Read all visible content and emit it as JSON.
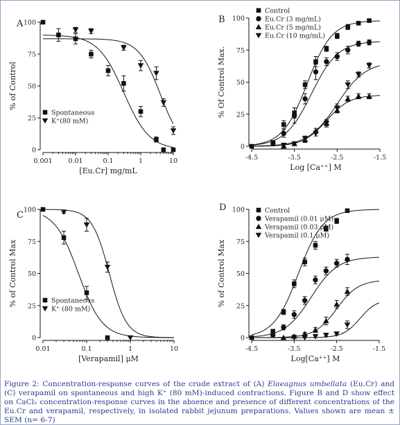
{
  "chart_data": [
    {
      "panel": "A",
      "type": "scatter",
      "xscale": "log",
      "xlim": [
        0.001,
        10
      ],
      "ylim": [
        0,
        100
      ],
      "xticks": [
        "0.001",
        "0.01",
        "0.1",
        "1",
        "10"
      ],
      "yticks": [
        "0",
        "25",
        "50",
        "75",
        "100"
      ],
      "xlabel": "[Eu.Cr] mg/mL",
      "ylabel": "% of Control",
      "legend_position": "lower-left",
      "series": [
        {
          "name": "Spontaneous",
          "marker": "square",
          "x": [
            0.001,
            0.003,
            0.01,
            0.03,
            0.1,
            0.3,
            1,
            3,
            5,
            10
          ],
          "y": [
            100,
            90,
            87,
            75,
            62,
            52,
            30,
            8,
            0,
            0
          ],
          "err": [
            0,
            5,
            4,
            3,
            4,
            6,
            4,
            2,
            0,
            0
          ],
          "curve": {
            "top": 90,
            "bottom": 0,
            "ec50": 0.3,
            "hill": 1.1
          }
        },
        {
          "name": "K⁺(80 mM)",
          "marker": "triangle-down",
          "x": [
            0.01,
            0.03,
            0.3,
            1,
            3,
            5,
            10
          ],
          "y": [
            94,
            93,
            80,
            66,
            60,
            37,
            15
          ],
          "err": [
            2,
            2,
            2,
            4,
            5,
            3,
            3
          ],
          "curve": {
            "top": 87,
            "bottom": 0,
            "ec50": 4,
            "hill": 1.3
          }
        }
      ]
    },
    {
      "panel": "B",
      "type": "scatter",
      "xlim": [
        -4.5,
        -1.5
      ],
      "ylim": [
        0,
        100
      ],
      "xticks": [
        "-4.5",
        "-3.5",
        "-2.5",
        "-1.5"
      ],
      "yticks": [
        "0",
        "25",
        "50",
        "75",
        "100"
      ],
      "xlabel": "Log [Ca⁺⁺] M",
      "ylabel": "% Of Control Max.",
      "legend_position": "top-left",
      "series": [
        {
          "name": "Control",
          "marker": "square",
          "x": [
            -4.5,
            -4,
            -3.75,
            -3.5,
            -3.25,
            -3,
            -2.75,
            -2.5,
            -2.25,
            -2,
            -1.75
          ],
          "y": [
            0,
            3,
            17,
            26,
            48,
            66,
            76,
            86,
            93,
            96,
            98
          ],
          "err": [
            0,
            1,
            3,
            4,
            3,
            4,
            2,
            2,
            2,
            1,
            1
          ],
          "curve": {
            "top": 98,
            "bottom": 0,
            "ec50": -3.2,
            "hill": 1.5
          }
        },
        {
          "name": "Eu.Cr (3 mg/mL)",
          "marker": "circle",
          "x": [
            -4,
            -3.75,
            -3.5,
            -3.25,
            -3,
            -2.75,
            -2.5,
            -2.25,
            -2,
            -1.75
          ],
          "y": [
            2,
            10,
            24,
            37,
            58,
            66,
            70,
            75,
            80,
            81
          ],
          "err": [
            1,
            3,
            6,
            4,
            6,
            3,
            3,
            3,
            2,
            2
          ],
          "curve": {
            "top": 82,
            "bottom": 0,
            "ec50": -3.1,
            "hill": 1.4
          }
        },
        {
          "name": "Eu.Cr (5 mg/mL)",
          "marker": "triangle-up",
          "x": [
            -3.75,
            -3.5,
            -3.25,
            -3,
            -2.75,
            -2.5,
            -2.25,
            -2,
            -1.75
          ],
          "y": [
            0,
            2,
            5,
            12,
            18,
            28,
            37,
            39,
            39
          ],
          "err": [
            0,
            1,
            2,
            2,
            2,
            2,
            2,
            2,
            2
          ],
          "curve": {
            "top": 40,
            "bottom": 0,
            "ec50": -2.75,
            "hill": 1.6
          }
        },
        {
          "name": "Eu.Cr (10 mg/mL)",
          "marker": "triangle-down",
          "x": [
            -3.75,
            -3.5,
            -3.25,
            -3,
            -2.75,
            -2.5,
            -2.25,
            -2,
            -1.75
          ],
          "y": [
            1,
            2,
            6,
            10,
            18,
            30,
            48,
            56,
            63
          ],
          "err": [
            1,
            1,
            2,
            2,
            3,
            3,
            3,
            2,
            2
          ],
          "curve": {
            "top": 66,
            "bottom": 0,
            "ec50": -2.5,
            "hill": 1.3
          }
        }
      ]
    },
    {
      "panel": "C",
      "type": "scatter",
      "xscale": "log",
      "xlim": [
        0.01,
        10
      ],
      "ylim": [
        0,
        100
      ],
      "xticks": [
        "0.01",
        "0.1",
        "1",
        "10"
      ],
      "yticks": [
        "0",
        "25",
        "50",
        "75",
        "100"
      ],
      "xlabel": "[Verapamil] μM",
      "ylabel": "% of Control Max",
      "legend_position": "lower-left",
      "series": [
        {
          "name": "Spontaneous",
          "marker": "square",
          "x": [
            0.01,
            0.03,
            0.1,
            0.3
          ],
          "y": [
            100,
            78,
            35,
            0
          ],
          "err": [
            1,
            5,
            5,
            0
          ],
          "curve": {
            "top": 100,
            "bottom": 0,
            "ec50": 0.065,
            "hill": 1.6
          }
        },
        {
          "name": "K⁺ (80 mM)",
          "marker": "triangle-down",
          "x": [
            0.03,
            0.1,
            0.3,
            1
          ],
          "y": [
            98,
            88,
            55,
            0
          ],
          "err": [
            1,
            5,
            4,
            0
          ],
          "curve": {
            "top": 100,
            "bottom": 0,
            "ec50": 0.33,
            "hill": 2.2
          }
        }
      ]
    },
    {
      "panel": "D",
      "type": "scatter",
      "xlim": [
        -4.5,
        -1.5
      ],
      "ylim": [
        0,
        100
      ],
      "xticks": [
        "-4.5",
        "-3.5",
        "-2.5",
        "-1.5"
      ],
      "yticks": [
        "0",
        "25",
        "50",
        "75",
        "100"
      ],
      "xlabel": "Log[Ca⁺⁺] M",
      "ylabel": "% of Control Max",
      "legend_position": "top-left",
      "series": [
        {
          "name": "Control",
          "marker": "square",
          "x": [
            -4.5,
            -4,
            -3.75,
            -3.5,
            -3.25,
            -3,
            -2.75,
            -2.5,
            -2.25
          ],
          "y": [
            0,
            5,
            20,
            42,
            59,
            72,
            85,
            91,
            99
          ],
          "err": [
            0,
            1,
            2,
            3,
            3,
            3,
            2,
            2,
            1
          ],
          "curve": {
            "top": 100,
            "bottom": 0,
            "ec50": -3.4,
            "hill": 1.5
          }
        },
        {
          "name": "Verapamil (0.01 μM)",
          "marker": "circle",
          "x": [
            -4,
            -3.75,
            -3.5,
            -3.25,
            -3,
            -2.75,
            -2.5,
            -2.25
          ],
          "y": [
            2,
            8,
            18,
            29,
            45,
            52,
            58,
            61
          ],
          "err": [
            1,
            2,
            3,
            3,
            3,
            3,
            3,
            4
          ],
          "curve": {
            "top": 63,
            "bottom": 0,
            "ec50": -3.1,
            "hill": 1.4
          }
        },
        {
          "name": "Verapamil (0.03 μM)",
          "marker": "triangle-up",
          "x": [
            -3.75,
            -3.5,
            -3.25,
            -3,
            -2.75,
            -2.5,
            -2.25
          ],
          "y": [
            0,
            1,
            3,
            6,
            13,
            26,
            36
          ],
          "err": [
            0,
            1,
            1,
            2,
            3,
            3,
            3
          ],
          "curve": {
            "top": 45,
            "bottom": 0,
            "ec50": -2.5,
            "hill": 1.7
          }
        },
        {
          "name": "Verapamil (0.1 μM)",
          "marker": "triangle-down",
          "x": [
            -3.5,
            -3.25,
            -3,
            -2.75,
            -2.5,
            -2.25
          ],
          "y": [
            0,
            0,
            1,
            2,
            3,
            10
          ],
          "err": [
            0,
            0,
            1,
            1,
            1,
            3
          ],
          "curve": {
            "top": 30,
            "bottom": 0,
            "ec50": -1.95,
            "hill": 2.2
          }
        }
      ]
    }
  ],
  "caption": {
    "p1": "Figure 2: Concentration-response curves of the crude extract of (A) ",
    "species": "Elaeagnus umbellata",
    "p2": " (Eu.Cr) and (C) verapamil on spontaneous and high K⁺ (80 mM)-induced contractions. Figure B and D show effect on CaCl₂ concentration-response curves in the absence and presence of different concentrations of the Eu.Cr and verapamil, respectively, in isolated rabbit jejunum preparations. Values shown are mean ± SEM (n= 6-7)"
  },
  "colors": {
    "caption_text": "#2b3a8f",
    "frame_border": "#9aa4c4",
    "plot_ink": "#111111"
  }
}
